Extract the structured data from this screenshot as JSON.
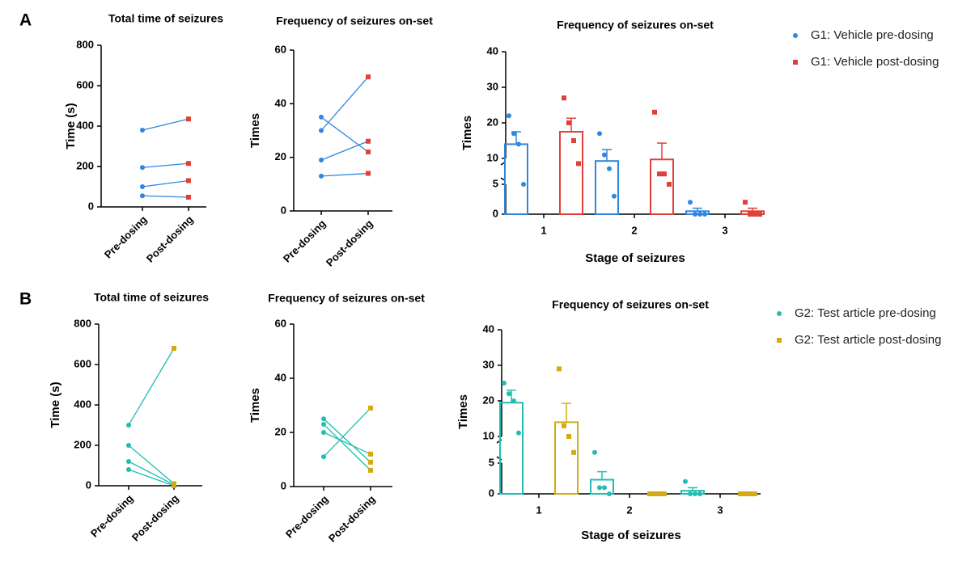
{
  "chart_data": [
    {
      "type": "paired",
      "panel": "A",
      "title": "Total time of seizures",
      "ylabel": "Time (s)",
      "categories": [
        "Pre-dosing",
        "Post-dosing"
      ],
      "line_color": "#2f86de",
      "colors": [
        "#2f86de",
        "#e0403a"
      ],
      "markers": [
        "circle",
        "square"
      ],
      "series": [
        {
          "values": [
            380,
            435
          ]
        },
        {
          "values": [
            195,
            215
          ]
        },
        {
          "values": [
            100,
            130
          ]
        },
        {
          "values": [
            55,
            48
          ]
        }
      ],
      "ylim": [
        0,
        800
      ],
      "yticks": [
        0,
        200,
        400,
        600,
        800
      ]
    },
    {
      "type": "paired",
      "title": "Frequency of seizures on-set",
      "ylabel": "Times",
      "categories": [
        "Pre-dosing",
        "Post-dosing"
      ],
      "line_color": "#2f86de",
      "colors": [
        "#2f86de",
        "#e0403a"
      ],
      "markers": [
        "circle",
        "square"
      ],
      "series": [
        {
          "values": [
            35,
            22
          ]
        },
        {
          "values": [
            30,
            50
          ]
        },
        {
          "values": [
            19,
            26
          ]
        },
        {
          "values": [
            13,
            14
          ]
        }
      ],
      "ylim": [
        0,
        60
      ],
      "yticks": [
        0,
        20,
        40,
        60
      ]
    },
    {
      "type": "bar",
      "title": "Frequency of seizures on-set",
      "ylabel": "Times",
      "xlabel": "Stage of seizures",
      "categories": [
        "1",
        "2",
        "3"
      ],
      "legend": "right",
      "axis_break": [
        5,
        10
      ],
      "series": [
        {
          "name": "G1: Vehicle pre-dosing",
          "color": "#2f86de",
          "marker": "circle",
          "values": [
            14,
            9.5,
            0.5
          ],
          "errors": [
            3.5,
            3,
            0.5
          ],
          "points": [
            [
              22,
              17,
              14,
              5
            ],
            [
              17,
              11,
              8,
              3
            ],
            [
              2,
              0,
              0,
              0
            ]
          ]
        },
        {
          "name": "G1: Vehicle post-dosing",
          "color": "#e0403a",
          "marker": "square",
          "values": [
            17.5,
            9.8,
            0.5
          ],
          "errors": [
            3.8,
            4.5,
            0.5
          ],
          "points": [
            [
              27,
              20,
              15,
              9
            ],
            [
              23,
              7,
              7,
              5
            ],
            [
              2,
              0,
              0,
              0
            ]
          ]
        }
      ],
      "ylim": [
        0,
        40
      ],
      "yticks": [
        0,
        5,
        10,
        20,
        30,
        40
      ]
    },
    {
      "type": "paired",
      "panel": "B",
      "title": "Total time of seizures",
      "ylabel": "Time (s)",
      "categories": [
        "Pre-dosing",
        "Post-dosing"
      ],
      "line_color": "#22bdb0",
      "colors": [
        "#22bdb0",
        "#d4aa14"
      ],
      "markers": [
        "circle",
        "square"
      ],
      "series": [
        {
          "values": [
            300,
            680
          ]
        },
        {
          "values": [
            200,
            10
          ]
        },
        {
          "values": [
            120,
            5
          ]
        },
        {
          "values": [
            80,
            0
          ]
        }
      ],
      "ylim": [
        0,
        800
      ],
      "yticks": [
        0,
        200,
        400,
        600,
        800
      ]
    },
    {
      "type": "paired",
      "title": "Frequency of seizures on-set",
      "ylabel": "Times",
      "categories": [
        "Pre-dosing",
        "Post-dosing"
      ],
      "line_color": "#22bdb0",
      "colors": [
        "#22bdb0",
        "#d4aa14"
      ],
      "markers": [
        "circle",
        "square"
      ],
      "series": [
        {
          "values": [
            25,
            9
          ]
        },
        {
          "values": [
            23,
            6
          ]
        },
        {
          "values": [
            20,
            12
          ]
        },
        {
          "values": [
            11,
            29
          ]
        }
      ],
      "ylim": [
        0,
        60
      ],
      "yticks": [
        0,
        20,
        40,
        60
      ]
    },
    {
      "type": "bar",
      "title": "Frequency of seizures on-set",
      "ylabel": "Times",
      "xlabel": "Stage of seizures",
      "categories": [
        "1",
        "2",
        "3"
      ],
      "legend": "right",
      "axis_break": [
        5,
        10
      ],
      "series": [
        {
          "name": "G2: Test article pre-dosing",
          "color": "#22bdb0",
          "marker": "circle",
          "values": [
            19.5,
            2.3,
            0.5
          ],
          "errors": [
            3.5,
            1.3,
            0.5
          ],
          "points": [
            [
              25,
              22,
              20,
              11
            ],
            [
              7,
              1,
              1,
              0
            ],
            [
              2,
              0,
              0,
              0
            ]
          ]
        },
        {
          "name": "G2: Test article post-dosing",
          "color": "#d4aa14",
          "marker": "square",
          "values": [
            14,
            0,
            0
          ],
          "errors": [
            5.3,
            0,
            0
          ],
          "points": [
            [
              29,
              13,
              10,
              7
            ],
            [
              0,
              0,
              0,
              0
            ],
            [
              0,
              0,
              0,
              0
            ]
          ]
        }
      ],
      "ylim": [
        0,
        40
      ],
      "yticks": [
        0,
        5,
        10,
        20,
        30,
        40
      ]
    }
  ]
}
